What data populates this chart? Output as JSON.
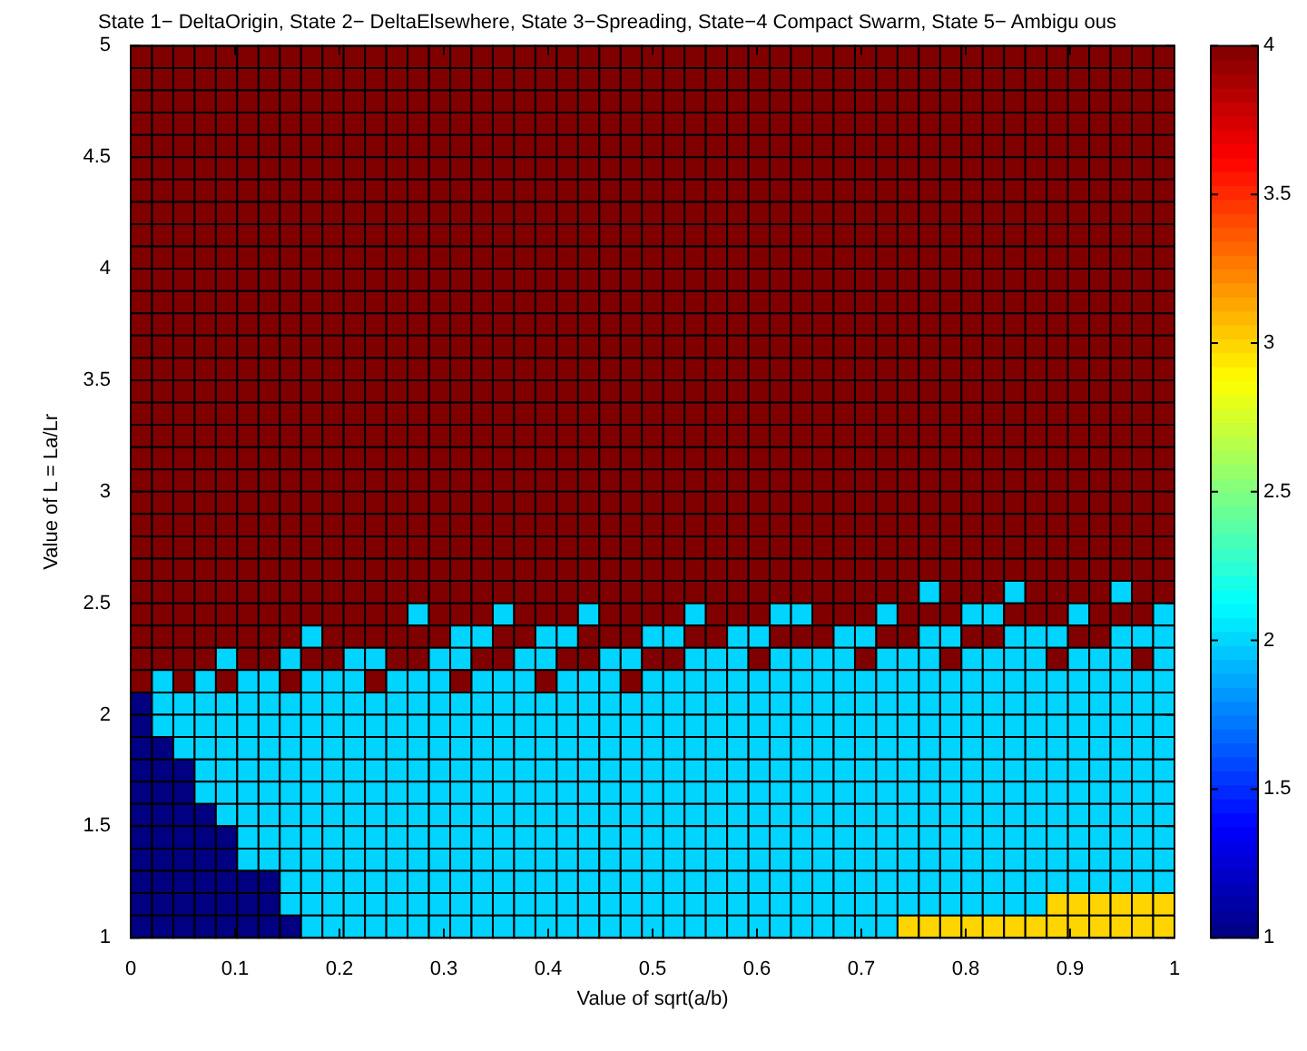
{
  "chart_data": {
    "type": "heatmap",
    "title": "State 1− DeltaOrigin, State 2− DeltaElsewhere, State 3−Spreading, State−4 Compact Swarm, State 5− Ambigu ous",
    "xlabel": "Value of sqrt(a/b)",
    "ylabel": "Value of L = La/Lr",
    "cells": [
      [
        4,
        4,
        4,
        4,
        4,
        4,
        4,
        4,
        4,
        4,
        4,
        4,
        4,
        4,
        4,
        4,
        4,
        4,
        4,
        4,
        4,
        4,
        4,
        4,
        4,
        4,
        4,
        4,
        4,
        4,
        4,
        4,
        4,
        4,
        4,
        4,
        4,
        4,
        4,
        4,
        4,
        4,
        4,
        4,
        4,
        4,
        4,
        4,
        4
      ],
      [
        4,
        4,
        4,
        4,
        4,
        4,
        4,
        4,
        4,
        4,
        4,
        4,
        4,
        4,
        4,
        4,
        4,
        4,
        4,
        4,
        4,
        4,
        4,
        4,
        4,
        4,
        4,
        4,
        4,
        4,
        4,
        4,
        4,
        4,
        4,
        4,
        4,
        4,
        4,
        4,
        4,
        4,
        4,
        4,
        4,
        4,
        4,
        4,
        4
      ],
      [
        4,
        4,
        4,
        4,
        4,
        4,
        4,
        4,
        4,
        4,
        4,
        4,
        4,
        4,
        4,
        4,
        4,
        4,
        4,
        4,
        4,
        4,
        4,
        4,
        4,
        4,
        4,
        4,
        4,
        4,
        4,
        4,
        4,
        4,
        4,
        4,
        4,
        4,
        4,
        4,
        4,
        4,
        4,
        4,
        4,
        4,
        4,
        4,
        4
      ],
      [
        4,
        4,
        4,
        4,
        4,
        4,
        4,
        4,
        4,
        4,
        4,
        4,
        4,
        4,
        4,
        4,
        4,
        4,
        4,
        4,
        4,
        4,
        4,
        4,
        4,
        4,
        4,
        4,
        4,
        4,
        4,
        4,
        4,
        4,
        4,
        4,
        4,
        4,
        4,
        4,
        4,
        4,
        4,
        4,
        4,
        4,
        4,
        4,
        4
      ],
      [
        4,
        4,
        4,
        4,
        4,
        4,
        4,
        4,
        4,
        4,
        4,
        4,
        4,
        4,
        4,
        4,
        4,
        4,
        4,
        4,
        4,
        4,
        4,
        4,
        4,
        4,
        4,
        4,
        4,
        4,
        4,
        4,
        4,
        4,
        4,
        4,
        4,
        4,
        4,
        4,
        4,
        4,
        4,
        4,
        4,
        4,
        4,
        4,
        4
      ],
      [
        4,
        4,
        4,
        4,
        4,
        4,
        4,
        4,
        4,
        4,
        4,
        4,
        4,
        4,
        4,
        4,
        4,
        4,
        4,
        4,
        4,
        4,
        4,
        4,
        4,
        4,
        4,
        4,
        4,
        4,
        4,
        4,
        4,
        4,
        4,
        4,
        4,
        4,
        4,
        4,
        4,
        4,
        4,
        4,
        4,
        4,
        4,
        4,
        4
      ],
      [
        4,
        4,
        4,
        4,
        4,
        4,
        4,
        4,
        4,
        4,
        4,
        4,
        4,
        4,
        4,
        4,
        4,
        4,
        4,
        4,
        4,
        4,
        4,
        4,
        4,
        4,
        4,
        4,
        4,
        4,
        4,
        4,
        4,
        4,
        4,
        4,
        4,
        4,
        4,
        4,
        4,
        4,
        4,
        4,
        4,
        4,
        4,
        4,
        4
      ],
      [
        4,
        4,
        4,
        4,
        4,
        4,
        4,
        4,
        4,
        4,
        4,
        4,
        4,
        4,
        4,
        4,
        4,
        4,
        4,
        4,
        4,
        4,
        4,
        4,
        4,
        4,
        4,
        4,
        4,
        4,
        4,
        4,
        4,
        4,
        4,
        4,
        4,
        4,
        4,
        4,
        4,
        4,
        4,
        4,
        4,
        4,
        4,
        4,
        4
      ],
      [
        4,
        4,
        4,
        4,
        4,
        4,
        4,
        4,
        4,
        4,
        4,
        4,
        4,
        4,
        4,
        4,
        4,
        4,
        4,
        4,
        4,
        4,
        4,
        4,
        4,
        4,
        4,
        4,
        4,
        4,
        4,
        4,
        4,
        4,
        4,
        4,
        4,
        4,
        4,
        4,
        4,
        4,
        4,
        4,
        4,
        4,
        4,
        4,
        4
      ],
      [
        4,
        4,
        4,
        4,
        4,
        4,
        4,
        4,
        4,
        4,
        4,
        4,
        4,
        4,
        4,
        4,
        4,
        4,
        4,
        4,
        4,
        4,
        4,
        4,
        4,
        4,
        4,
        4,
        4,
        4,
        4,
        4,
        4,
        4,
        4,
        4,
        4,
        4,
        4,
        4,
        4,
        4,
        4,
        4,
        4,
        4,
        4,
        4,
        4
      ],
      [
        4,
        4,
        4,
        4,
        4,
        4,
        4,
        4,
        4,
        4,
        4,
        4,
        4,
        4,
        4,
        4,
        4,
        4,
        4,
        4,
        4,
        4,
        4,
        4,
        4,
        4,
        4,
        4,
        4,
        4,
        4,
        4,
        4,
        4,
        4,
        4,
        4,
        4,
        4,
        4,
        4,
        4,
        4,
        4,
        4,
        4,
        4,
        4,
        4
      ],
      [
        4,
        4,
        4,
        4,
        4,
        4,
        4,
        4,
        4,
        4,
        4,
        4,
        4,
        4,
        4,
        4,
        4,
        4,
        4,
        4,
        4,
        4,
        4,
        4,
        4,
        4,
        4,
        4,
        4,
        4,
        4,
        4,
        4,
        4,
        4,
        4,
        4,
        4,
        4,
        4,
        4,
        4,
        4,
        4,
        4,
        4,
        4,
        4,
        4
      ],
      [
        4,
        4,
        4,
        4,
        4,
        4,
        4,
        4,
        4,
        4,
        4,
        4,
        4,
        4,
        4,
        4,
        4,
        4,
        4,
        4,
        4,
        4,
        4,
        4,
        4,
        4,
        4,
        4,
        4,
        4,
        4,
        4,
        4,
        4,
        4,
        4,
        4,
        4,
        4,
        4,
        4,
        4,
        4,
        4,
        4,
        4,
        4,
        4,
        4
      ],
      [
        4,
        4,
        4,
        4,
        4,
        4,
        4,
        4,
        4,
        4,
        4,
        4,
        4,
        4,
        4,
        4,
        4,
        4,
        4,
        4,
        4,
        4,
        4,
        4,
        4,
        4,
        4,
        4,
        4,
        4,
        4,
        4,
        4,
        4,
        4,
        4,
        4,
        4,
        4,
        4,
        4,
        4,
        4,
        4,
        4,
        4,
        4,
        4,
        4
      ],
      [
        4,
        4,
        4,
        4,
        4,
        4,
        4,
        4,
        4,
        4,
        4,
        4,
        4,
        4,
        4,
        4,
        4,
        4,
        4,
        4,
        4,
        4,
        4,
        4,
        4,
        4,
        4,
        4,
        4,
        4,
        4,
        4,
        4,
        4,
        4,
        4,
        4,
        4,
        4,
        4,
        4,
        4,
        4,
        4,
        4,
        4,
        4,
        4,
        4
      ],
      [
        4,
        4,
        4,
        4,
        4,
        4,
        4,
        4,
        4,
        4,
        4,
        4,
        4,
        4,
        4,
        4,
        4,
        4,
        4,
        4,
        4,
        4,
        4,
        4,
        4,
        4,
        4,
        4,
        4,
        4,
        4,
        4,
        4,
        4,
        4,
        4,
        4,
        4,
        4,
        4,
        4,
        4,
        4,
        4,
        4,
        4,
        4,
        4,
        4
      ],
      [
        4,
        4,
        4,
        4,
        4,
        4,
        4,
        4,
        4,
        4,
        4,
        4,
        4,
        4,
        4,
        4,
        4,
        4,
        4,
        4,
        4,
        4,
        4,
        4,
        4,
        4,
        4,
        4,
        4,
        4,
        4,
        4,
        4,
        4,
        4,
        4,
        4,
        4,
        4,
        4,
        4,
        4,
        4,
        4,
        4,
        4,
        4,
        4,
        4
      ],
      [
        4,
        4,
        4,
        4,
        4,
        4,
        4,
        4,
        4,
        4,
        4,
        4,
        4,
        4,
        4,
        4,
        4,
        4,
        4,
        4,
        4,
        4,
        4,
        4,
        4,
        4,
        4,
        4,
        4,
        4,
        4,
        4,
        4,
        4,
        4,
        4,
        4,
        4,
        4,
        4,
        4,
        4,
        4,
        4,
        4,
        4,
        4,
        4,
        4
      ],
      [
        4,
        4,
        4,
        4,
        4,
        4,
        4,
        4,
        4,
        4,
        4,
        4,
        4,
        4,
        4,
        4,
        4,
        4,
        4,
        4,
        4,
        4,
        4,
        4,
        4,
        4,
        4,
        4,
        4,
        4,
        4,
        4,
        4,
        4,
        4,
        4,
        4,
        4,
        4,
        4,
        4,
        4,
        4,
        4,
        4,
        4,
        4,
        4,
        4
      ],
      [
        4,
        4,
        4,
        4,
        4,
        4,
        4,
        4,
        4,
        4,
        4,
        4,
        4,
        4,
        4,
        4,
        4,
        4,
        4,
        4,
        4,
        4,
        4,
        4,
        4,
        4,
        4,
        4,
        4,
        4,
        4,
        4,
        4,
        4,
        4,
        4,
        4,
        4,
        4,
        4,
        4,
        4,
        4,
        4,
        4,
        4,
        4,
        4,
        4
      ],
      [
        4,
        4,
        4,
        4,
        4,
        4,
        4,
        4,
        4,
        4,
        4,
        4,
        4,
        4,
        4,
        4,
        4,
        4,
        4,
        4,
        4,
        4,
        4,
        4,
        4,
        4,
        4,
        4,
        4,
        4,
        4,
        4,
        4,
        4,
        4,
        4,
        4,
        4,
        4,
        4,
        4,
        4,
        4,
        4,
        4,
        4,
        4,
        4,
        4
      ],
      [
        4,
        4,
        4,
        4,
        4,
        4,
        4,
        4,
        4,
        4,
        4,
        4,
        4,
        4,
        4,
        4,
        4,
        4,
        4,
        4,
        4,
        4,
        4,
        4,
        4,
        4,
        4,
        4,
        4,
        4,
        4,
        4,
        4,
        4,
        4,
        4,
        4,
        4,
        4,
        4,
        4,
        4,
        4,
        4,
        4,
        4,
        4,
        4,
        4
      ],
      [
        4,
        4,
        4,
        4,
        4,
        4,
        4,
        4,
        4,
        4,
        4,
        4,
        4,
        4,
        4,
        4,
        4,
        4,
        4,
        4,
        4,
        4,
        4,
        4,
        4,
        4,
        4,
        4,
        4,
        4,
        4,
        4,
        4,
        4,
        4,
        4,
        4,
        4,
        4,
        4,
        4,
        4,
        4,
        4,
        4,
        4,
        4,
        4,
        4
      ],
      [
        4,
        4,
        4,
        4,
        4,
        4,
        4,
        4,
        4,
        4,
        4,
        4,
        4,
        4,
        4,
        4,
        4,
        4,
        4,
        4,
        4,
        4,
        4,
        4,
        4,
        4,
        4,
        4,
        4,
        4,
        4,
        4,
        4,
        4,
        4,
        4,
        4,
        4,
        4,
        4,
        4,
        4,
        4,
        4,
        4,
        4,
        4,
        4,
        4
      ],
      [
        4,
        4,
        4,
        4,
        4,
        4,
        4,
        4,
        4,
        4,
        4,
        4,
        4,
        4,
        4,
        4,
        4,
        4,
        4,
        4,
        4,
        4,
        4,
        4,
        4,
        4,
        4,
        4,
        4,
        4,
        4,
        4,
        4,
        4,
        4,
        4,
        4,
        2,
        4,
        4,
        4,
        2,
        4,
        4,
        4,
        4,
        2,
        4,
        4
      ],
      [
        4,
        4,
        4,
        4,
        4,
        4,
        4,
        4,
        4,
        4,
        4,
        4,
        4,
        2,
        4,
        4,
        4,
        2,
        4,
        4,
        4,
        2,
        4,
        4,
        4,
        4,
        2,
        4,
        4,
        4,
        2,
        2,
        4,
        4,
        4,
        2,
        4,
        4,
        4,
        2,
        2,
        4,
        4,
        4,
        2,
        4,
        4,
        4,
        2
      ],
      [
        4,
        4,
        4,
        4,
        4,
        4,
        4,
        4,
        2,
        4,
        4,
        4,
        4,
        4,
        4,
        2,
        2,
        4,
        4,
        2,
        2,
        4,
        4,
        4,
        2,
        2,
        4,
        4,
        2,
        2,
        4,
        4,
        4,
        2,
        2,
        4,
        4,
        2,
        2,
        4,
        4,
        2,
        2,
        2,
        4,
        4,
        2,
        2,
        2
      ],
      [
        4,
        4,
        4,
        4,
        2,
        4,
        4,
        2,
        4,
        4,
        2,
        2,
        4,
        4,
        2,
        2,
        4,
        4,
        2,
        2,
        4,
        4,
        2,
        2,
        4,
        4,
        2,
        2,
        2,
        4,
        2,
        2,
        2,
        2,
        4,
        2,
        2,
        2,
        4,
        2,
        2,
        2,
        2,
        4,
        2,
        2,
        2,
        4,
        2
      ],
      [
        4,
        2,
        4,
        2,
        4,
        2,
        2,
        4,
        2,
        2,
        2,
        4,
        2,
        2,
        2,
        4,
        2,
        2,
        2,
        4,
        2,
        2,
        2,
        4,
        2,
        2,
        2,
        2,
        2,
        2,
        2,
        2,
        2,
        2,
        2,
        2,
        2,
        2,
        2,
        2,
        2,
        2,
        2,
        2,
        2,
        2,
        2,
        2,
        2
      ],
      [
        1,
        2,
        2,
        2,
        2,
        2,
        2,
        2,
        2,
        2,
        2,
        2,
        2,
        2,
        2,
        2,
        2,
        2,
        2,
        2,
        2,
        2,
        2,
        2,
        2,
        2,
        2,
        2,
        2,
        2,
        2,
        2,
        2,
        2,
        2,
        2,
        2,
        2,
        2,
        2,
        2,
        2,
        2,
        2,
        2,
        2,
        2,
        2,
        2
      ],
      [
        1,
        2,
        2,
        2,
        2,
        2,
        2,
        2,
        2,
        2,
        2,
        2,
        2,
        2,
        2,
        2,
        2,
        2,
        2,
        2,
        2,
        2,
        2,
        2,
        2,
        2,
        2,
        2,
        2,
        2,
        2,
        2,
        2,
        2,
        2,
        2,
        2,
        2,
        2,
        2,
        2,
        2,
        2,
        2,
        2,
        2,
        2,
        2,
        2
      ],
      [
        1,
        1,
        2,
        2,
        2,
        2,
        2,
        2,
        2,
        2,
        2,
        2,
        2,
        2,
        2,
        2,
        2,
        2,
        2,
        2,
        2,
        2,
        2,
        2,
        2,
        2,
        2,
        2,
        2,
        2,
        2,
        2,
        2,
        2,
        2,
        2,
        2,
        2,
        2,
        2,
        2,
        2,
        2,
        2,
        2,
        2,
        2,
        2,
        2
      ],
      [
        1,
        1,
        1,
        2,
        2,
        2,
        2,
        2,
        2,
        2,
        2,
        2,
        2,
        2,
        2,
        2,
        2,
        2,
        2,
        2,
        2,
        2,
        2,
        2,
        2,
        2,
        2,
        2,
        2,
        2,
        2,
        2,
        2,
        2,
        2,
        2,
        2,
        2,
        2,
        2,
        2,
        2,
        2,
        2,
        2,
        2,
        2,
        2,
        2
      ],
      [
        1,
        1,
        1,
        2,
        2,
        2,
        2,
        2,
        2,
        2,
        2,
        2,
        2,
        2,
        2,
        2,
        2,
        2,
        2,
        2,
        2,
        2,
        2,
        2,
        2,
        2,
        2,
        2,
        2,
        2,
        2,
        2,
        2,
        2,
        2,
        2,
        2,
        2,
        2,
        2,
        2,
        2,
        2,
        2,
        2,
        2,
        2,
        2,
        2
      ],
      [
        1,
        1,
        1,
        1,
        2,
        2,
        2,
        2,
        2,
        2,
        2,
        2,
        2,
        2,
        2,
        2,
        2,
        2,
        2,
        2,
        2,
        2,
        2,
        2,
        2,
        2,
        2,
        2,
        2,
        2,
        2,
        2,
        2,
        2,
        2,
        2,
        2,
        2,
        2,
        2,
        2,
        2,
        2,
        2,
        2,
        2,
        2,
        2,
        2
      ],
      [
        1,
        1,
        1,
        1,
        1,
        2,
        2,
        2,
        2,
        2,
        2,
        2,
        2,
        2,
        2,
        2,
        2,
        2,
        2,
        2,
        2,
        2,
        2,
        2,
        2,
        2,
        2,
        2,
        2,
        2,
        2,
        2,
        2,
        2,
        2,
        2,
        2,
        2,
        2,
        2,
        2,
        2,
        2,
        2,
        2,
        2,
        2,
        2,
        2
      ],
      [
        1,
        1,
        1,
        1,
        1,
        2,
        2,
        2,
        2,
        2,
        2,
        2,
        2,
        2,
        2,
        2,
        2,
        2,
        2,
        2,
        2,
        2,
        2,
        2,
        2,
        2,
        2,
        2,
        2,
        2,
        2,
        2,
        2,
        2,
        2,
        2,
        2,
        2,
        2,
        2,
        2,
        2,
        2,
        2,
        2,
        2,
        2,
        2,
        2
      ],
      [
        1,
        1,
        1,
        1,
        1,
        1,
        1,
        2,
        2,
        2,
        2,
        2,
        2,
        2,
        2,
        2,
        2,
        2,
        2,
        2,
        2,
        2,
        2,
        2,
        2,
        2,
        2,
        2,
        2,
        2,
        2,
        2,
        2,
        2,
        2,
        2,
        2,
        2,
        2,
        2,
        2,
        2,
        2,
        2,
        2,
        2,
        2,
        2,
        2
      ],
      [
        1,
        1,
        1,
        1,
        1,
        1,
        1,
        2,
        2,
        2,
        2,
        2,
        2,
        2,
        2,
        2,
        2,
        2,
        2,
        2,
        2,
        2,
        2,
        2,
        2,
        2,
        2,
        2,
        2,
        2,
        2,
        2,
        2,
        2,
        2,
        2,
        2,
        2,
        2,
        2,
        2,
        2,
        2,
        3,
        3,
        3,
        3,
        3,
        3
      ],
      [
        1,
        1,
        1,
        1,
        1,
        1,
        1,
        1,
        2,
        2,
        2,
        2,
        2,
        2,
        2,
        2,
        2,
        2,
        2,
        2,
        2,
        2,
        2,
        2,
        2,
        2,
        2,
        2,
        2,
        2,
        2,
        2,
        2,
        2,
        2,
        2,
        3,
        3,
        3,
        3,
        3,
        3,
        3,
        3,
        3,
        3,
        3,
        3,
        3
      ]
    ],
    "xlim": [
      0,
      1
    ],
    "xticks": [
      0,
      0.1,
      0.2,
      0.3,
      0.4,
      0.5,
      0.6,
      0.7,
      0.8,
      0.9,
      1
    ],
    "ylim": [
      1,
      5
    ],
    "yticks": [
      1,
      1.5,
      2,
      2.5,
      3,
      3.5,
      4,
      4.5,
      5
    ],
    "clim": [
      1,
      4
    ],
    "cticks": [
      1,
      1.5,
      2,
      2.5,
      3,
      3.5,
      4
    ]
  }
}
